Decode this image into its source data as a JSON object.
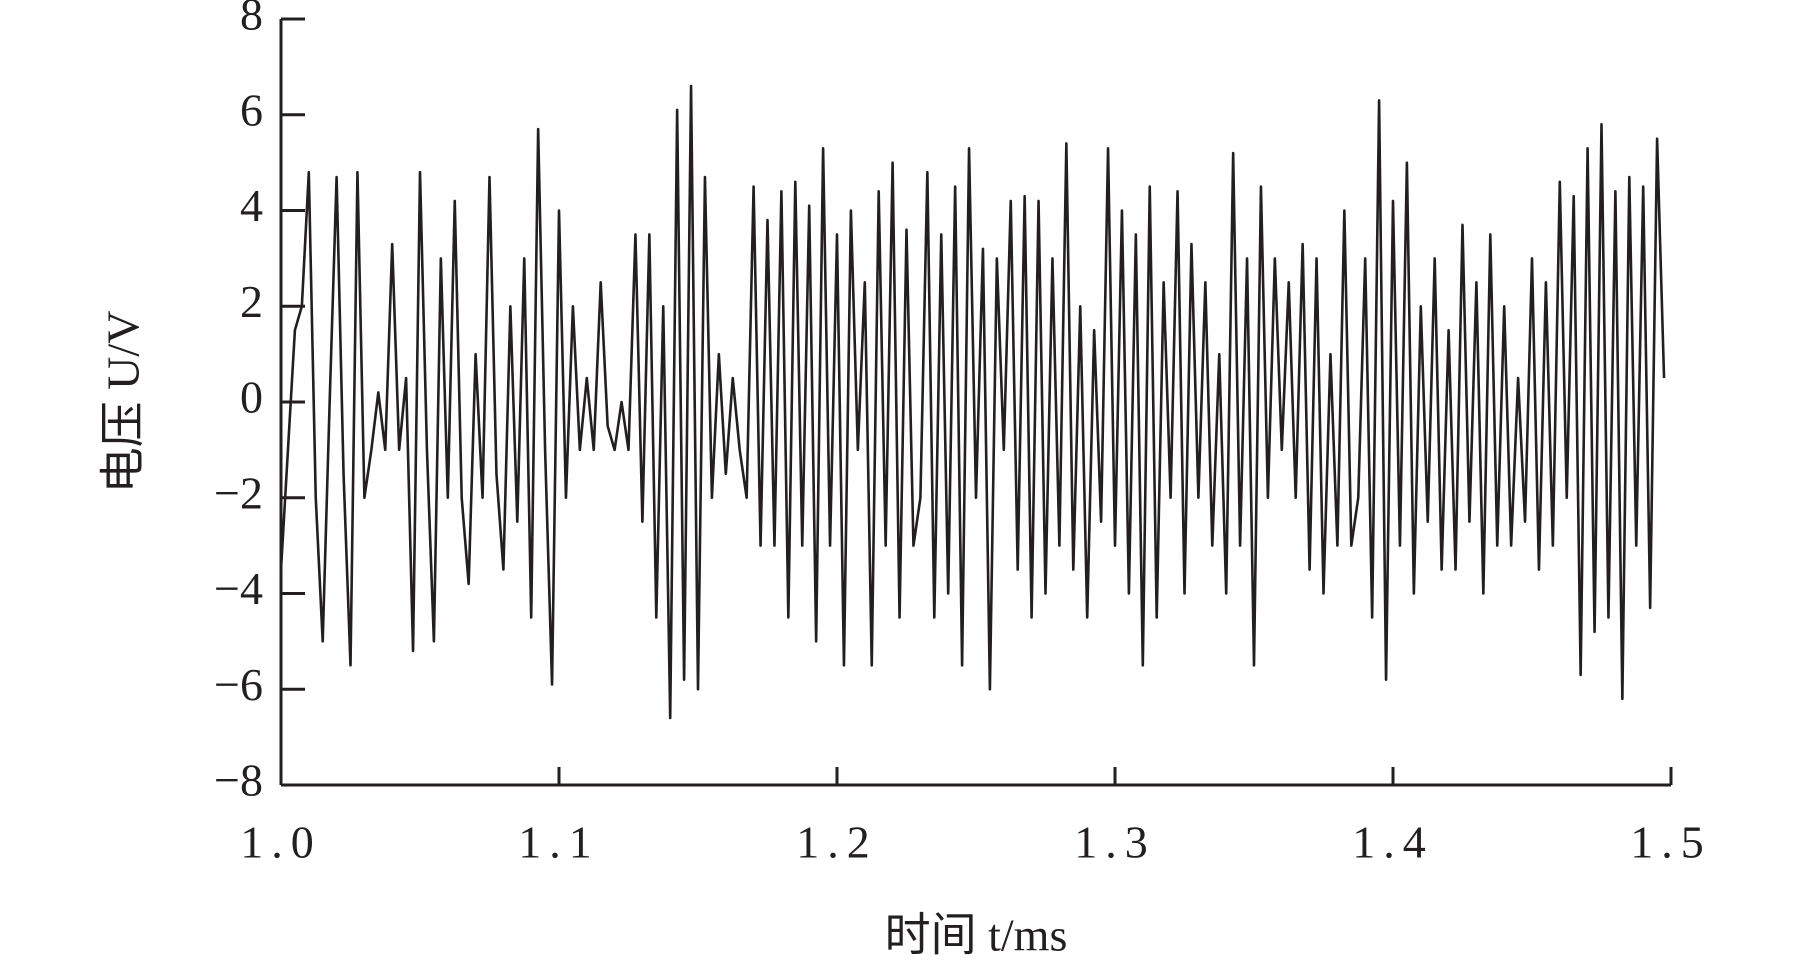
{
  "chart_data": {
    "type": "line",
    "xlabel": "时间 t/ms",
    "ylabel": "电压 U/V",
    "x": [
      1.0,
      1.0025,
      1.005,
      1.0075,
      1.01,
      1.0125,
      1.015,
      1.0175,
      1.02,
      1.0225,
      1.025,
      1.0275,
      1.03,
      1.0325,
      1.035,
      1.0375,
      1.04,
      1.0425,
      1.045,
      1.0475,
      1.05,
      1.0525,
      1.055,
      1.0575,
      1.06,
      1.0625,
      1.065,
      1.0675,
      1.07,
      1.0725,
      1.075,
      1.0775,
      1.08,
      1.0825,
      1.085,
      1.0875,
      1.09,
      1.0925,
      1.095,
      1.0975,
      1.1,
      1.1025,
      1.105,
      1.1075,
      1.11,
      1.1125,
      1.115,
      1.1175,
      1.12,
      1.1225,
      1.125,
      1.1275,
      1.13,
      1.1325,
      1.135,
      1.1375,
      1.14,
      1.1425,
      1.145,
      1.1475,
      1.15,
      1.1525,
      1.155,
      1.1575,
      1.16,
      1.1625,
      1.165,
      1.1675,
      1.17,
      1.1725,
      1.175,
      1.1775,
      1.18,
      1.1825,
      1.185,
      1.1875,
      1.19,
      1.1925,
      1.195,
      1.1975,
      1.2,
      1.2025,
      1.205,
      1.2075,
      1.21,
      1.2125,
      1.215,
      1.2175,
      1.22,
      1.2225,
      1.225,
      1.2275,
      1.23,
      1.2325,
      1.235,
      1.2375,
      1.24,
      1.2425,
      1.245,
      1.2475,
      1.25,
      1.2525,
      1.255,
      1.2575,
      1.26,
      1.2625,
      1.265,
      1.2675,
      1.27,
      1.2725,
      1.275,
      1.2775,
      1.28,
      1.2825,
      1.285,
      1.2875,
      1.29,
      1.2925,
      1.295,
      1.2975,
      1.3,
      1.3025,
      1.305,
      1.3075,
      1.31,
      1.3125,
      1.315,
      1.3175,
      1.32,
      1.3225,
      1.325,
      1.3275,
      1.33,
      1.3325,
      1.335,
      1.3375,
      1.34,
      1.3425,
      1.345,
      1.3475,
      1.35,
      1.3525,
      1.355,
      1.3575,
      1.36,
      1.3625,
      1.365,
      1.3675,
      1.37,
      1.3725,
      1.375,
      1.3775,
      1.38,
      1.3825,
      1.385,
      1.3875,
      1.39,
      1.3925,
      1.395,
      1.3975,
      1.4,
      1.4025,
      1.405,
      1.4075,
      1.41,
      1.4125,
      1.415,
      1.4175,
      1.42,
      1.4225,
      1.425,
      1.4275,
      1.43,
      1.4325,
      1.435,
      1.4375,
      1.44,
      1.4425,
      1.445,
      1.4475,
      1.45,
      1.4525,
      1.455,
      1.4575,
      1.46,
      1.4625,
      1.465,
      1.4675,
      1.47,
      1.4725,
      1.475,
      1.4775,
      1.48,
      1.4825,
      1.485,
      1.4875,
      1.49,
      1.4925,
      1.495,
      1.4975
    ],
    "series": [
      {
        "color": "#231f20",
        "values": [
          -3.5,
          -1,
          1.5,
          2,
          4.8,
          -2,
          -5,
          0,
          4.7,
          -1.5,
          -5.5,
          4.8,
          -2,
          -1,
          0.2,
          -1,
          3.3,
          -1,
          0.5,
          -5.2,
          4.8,
          -1,
          -5,
          3,
          -2,
          4.2,
          -2,
          -3.8,
          1,
          -2,
          4.7,
          -1.5,
          -3.5,
          2,
          -2.5,
          3,
          -4.5,
          5.7,
          -1,
          -5.9,
          4,
          -2,
          2,
          -1,
          0.5,
          -1,
          2.5,
          -0.5,
          -1,
          0,
          -1,
          3.5,
          -2.5,
          3.5,
          -4.5,
          2,
          -6.6,
          6.1,
          -5.8,
          6.6,
          -6,
          4.7,
          -2,
          1,
          -1.5,
          0.5,
          -1,
          -2,
          4.5,
          -3,
          3.8,
          -3,
          4.4,
          -4.5,
          4.6,
          -3,
          4.1,
          -5,
          5.3,
          -3,
          3.5,
          -5.5,
          4,
          -1,
          2.5,
          -5.5,
          4.4,
          -3,
          5,
          -4.5,
          3.6,
          -3,
          -2,
          4.8,
          -4.5,
          3.5,
          -4,
          4.5,
          -5.5,
          5.3,
          -2,
          3.2,
          -6,
          3,
          -1,
          4.2,
          -3.5,
          4.3,
          -4.5,
          4.2,
          -4,
          3,
          -3,
          5.4,
          -3.5,
          2,
          -4.5,
          1.5,
          -2.5,
          5.3,
          -3,
          4,
          -4,
          3.5,
          -5.5,
          4.5,
          -4.5,
          2.5,
          -2,
          4.4,
          -4,
          3.3,
          -2,
          2.5,
          -3,
          1,
          -4,
          5.2,
          -3,
          3,
          -5.5,
          4.5,
          -2,
          3,
          -1,
          2.5,
          -2,
          3.3,
          -3.5,
          3,
          -4,
          1,
          -3,
          4,
          -3,
          -2,
          3,
          -4.5,
          6.3,
          -5.8,
          4.2,
          -3,
          5,
          -4,
          2,
          -2.5,
          3,
          -3.5,
          1.5,
          -3.5,
          3.7,
          -2.5,
          2.5,
          -4,
          3.5,
          -3,
          2,
          -3,
          0.5,
          -2.5,
          3,
          -3.5,
          2.5,
          -3,
          4.6,
          -2,
          4.3,
          -5.7,
          5.3,
          -4.8,
          5.8,
          -4.5,
          4.4,
          -6.2,
          4.7,
          -3,
          4.5,
          -4.3,
          5.5,
          0.5
        ]
      }
    ],
    "xlim": [
      1.0,
      1.5
    ],
    "xticks": [
      {
        "value": 1.0,
        "label": "1.0"
      },
      1.1,
      1.2,
      1.3,
      1.4,
      1.5
    ],
    "ylim": [
      -8,
      8
    ],
    "yticks": [
      {
        "value": -8,
        "label": "−8"
      },
      {
        "value": -6,
        "label": "−6"
      },
      {
        "value": -4,
        "label": "−4"
      },
      {
        "value": -2,
        "label": "−2"
      },
      0,
      2,
      4,
      6,
      8
    ]
  }
}
